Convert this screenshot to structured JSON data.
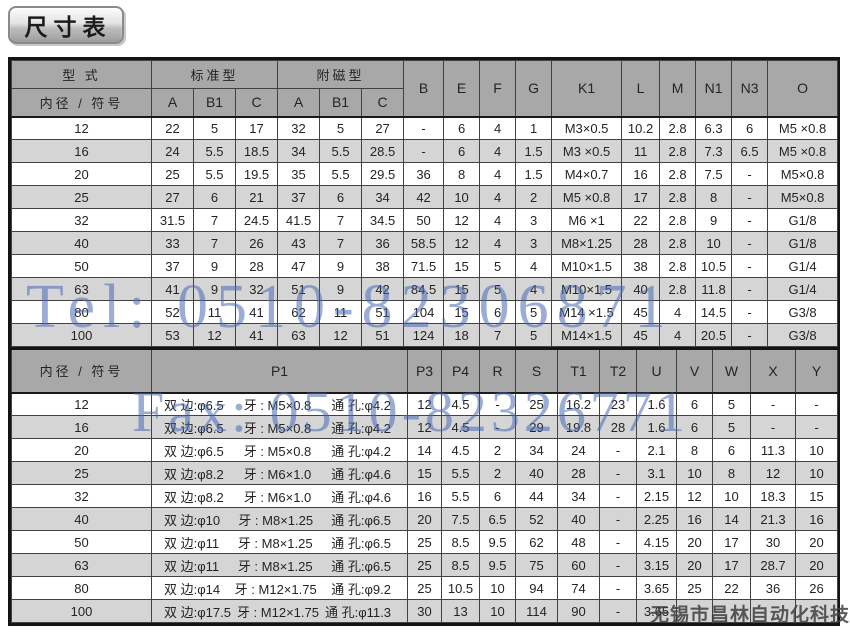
{
  "title": "尺寸表",
  "watermarks": {
    "tel": "Tel: 0510-82306871",
    "fax": "Fax: 0510-82326771",
    "company": "无锡市昌林自动化科技"
  },
  "top_table": {
    "header": {
      "type_label": "型 式",
      "bore_label": "内径 / 符号",
      "standard_label": "标准型",
      "magnet_label": "附磁型",
      "sub_cols": [
        "A",
        "B1",
        "C",
        "A",
        "B1",
        "C"
      ],
      "single_cols": [
        "B",
        "E",
        "F",
        "G",
        "K1",
        "L",
        "M",
        "N1",
        "N3",
        "O"
      ]
    },
    "rows": [
      [
        "12",
        "22",
        "5",
        "17",
        "32",
        "5",
        "27",
        "-",
        "6",
        "4",
        "1",
        "M3×0.5",
        "10.2",
        "2.8",
        "6.3",
        "6",
        "M5 ×0.8"
      ],
      [
        "16",
        "24",
        "5.5",
        "18.5",
        "34",
        "5.5",
        "28.5",
        "-",
        "6",
        "4",
        "1.5",
        "M3 ×0.5",
        "11",
        "2.8",
        "7.3",
        "6.5",
        "M5 ×0.8"
      ],
      [
        "20",
        "25",
        "5.5",
        "19.5",
        "35",
        "5.5",
        "29.5",
        "36",
        "8",
        "4",
        "1.5",
        "M4×0.7",
        "16",
        "2.8",
        "7.5",
        "-",
        "M5×0.8"
      ],
      [
        "25",
        "27",
        "6",
        "21",
        "37",
        "6",
        "34",
        "42",
        "10",
        "4",
        "2",
        "M5 ×0.8",
        "17",
        "2.8",
        "8",
        "-",
        "M5×0.8"
      ],
      [
        "32",
        "31.5",
        "7",
        "24.5",
        "41.5",
        "7",
        "34.5",
        "50",
        "12",
        "4",
        "3",
        "M6 ×1",
        "22",
        "2.8",
        "9",
        "-",
        "G1/8"
      ],
      [
        "40",
        "33",
        "7",
        "26",
        "43",
        "7",
        "36",
        "58.5",
        "12",
        "4",
        "3",
        "M8×1.25",
        "28",
        "2.8",
        "10",
        "-",
        "G1/8"
      ],
      [
        "50",
        "37",
        "9",
        "28",
        "47",
        "9",
        "38",
        "71.5",
        "15",
        "5",
        "4",
        "M10×1.5",
        "38",
        "2.8",
        "10.5",
        "-",
        "G1/4"
      ],
      [
        "63",
        "41",
        "9",
        "32",
        "51",
        "9",
        "42",
        "84.5",
        "15",
        "5",
        "4",
        "M10×1.5",
        "40",
        "2.8",
        "11.8",
        "-",
        "G1/4"
      ],
      [
        "80",
        "52",
        "11",
        "41",
        "62",
        "11",
        "51",
        "104",
        "15",
        "6",
        "5",
        "M14 ×1.5",
        "45",
        "4",
        "14.5",
        "-",
        "G3/8"
      ],
      [
        "100",
        "53",
        "12",
        "41",
        "63",
        "12",
        "51",
        "124",
        "18",
        "7",
        "5",
        "M14×1.5",
        "45",
        "4",
        "20.5",
        "-",
        "G3/8"
      ]
    ]
  },
  "bottom_table": {
    "header": {
      "bore_label": "内径 / 符号",
      "p1_label": "P1",
      "cols": [
        "P3",
        "P4",
        "R",
        "S",
        "T1",
        "T2",
        "U",
        "V",
        "W",
        "X",
        "Y"
      ]
    },
    "rows": [
      {
        "bore": "12",
        "p1": [
          "双 边:φ6.5",
          "牙 : M5×0.8",
          "通 孔:φ4.2"
        ],
        "vals": [
          "12",
          "4.5",
          "-",
          "25",
          "16.2",
          "23",
          "1.6",
          "6",
          "5",
          "-",
          "-"
        ]
      },
      {
        "bore": "16",
        "p1": [
          "双 边:φ6.5",
          "牙 : M5×0.8",
          "通 孔:φ4.2"
        ],
        "vals": [
          "12",
          "4.5",
          "-",
          "29",
          "19.8",
          "28",
          "1.6",
          "6",
          "5",
          "-",
          "-"
        ]
      },
      {
        "bore": "20",
        "p1": [
          "双 边:φ6.5",
          "牙 : M5×0.8",
          "通 孔:φ4.2"
        ],
        "vals": [
          "14",
          "4.5",
          "2",
          "34",
          "24",
          "-",
          "2.1",
          "8",
          "6",
          "11.3",
          "10"
        ]
      },
      {
        "bore": "25",
        "p1": [
          "双 边:φ8.2",
          "牙 : M6×1.0",
          "通 孔:φ4.6"
        ],
        "vals": [
          "15",
          "5.5",
          "2",
          "40",
          "28",
          "-",
          "3.1",
          "10",
          "8",
          "12",
          "10"
        ]
      },
      {
        "bore": "32",
        "p1": [
          "双 边:φ8.2",
          "牙 : M6×1.0",
          "通 孔:φ4.6"
        ],
        "vals": [
          "16",
          "5.5",
          "6",
          "44",
          "34",
          "-",
          "2.15",
          "12",
          "10",
          "18.3",
          "15"
        ]
      },
      {
        "bore": "40",
        "p1": [
          "双 边:φ10",
          "牙 : M8×1.25",
          "通 孔:φ6.5"
        ],
        "vals": [
          "20",
          "7.5",
          "6.5",
          "52",
          "40",
          "-",
          "2.25",
          "16",
          "14",
          "21.3",
          "16"
        ]
      },
      {
        "bore": "50",
        "p1": [
          "双 边:φ11",
          "牙 : M8×1.25",
          "通 孔:φ6.5"
        ],
        "vals": [
          "25",
          "8.5",
          "9.5",
          "62",
          "48",
          "-",
          "4.15",
          "20",
          "17",
          "30",
          "20"
        ]
      },
      {
        "bore": "63",
        "p1": [
          "双 边:φ11",
          "牙 : M8×1.25",
          "通 孔:φ6.5"
        ],
        "vals": [
          "25",
          "8.5",
          "9.5",
          "75",
          "60",
          "-",
          "3.15",
          "20",
          "17",
          "28.7",
          "20"
        ]
      },
      {
        "bore": "80",
        "p1": [
          "双 边:φ14",
          "牙 : M12×1.75",
          "通 孔:φ9.2"
        ],
        "vals": [
          "25",
          "10.5",
          "10",
          "94",
          "74",
          "-",
          "3.65",
          "25",
          "22",
          "36",
          "26"
        ]
      },
      {
        "bore": "100",
        "p1": [
          "双 边:φ17.5",
          "牙 : M12×1.75",
          "通 孔:φ11.3"
        ],
        "vals": [
          "30",
          "13",
          "10",
          "114",
          "90",
          "-",
          "3.65",
          "",
          "",
          "",
          ""
        ]
      }
    ]
  }
}
